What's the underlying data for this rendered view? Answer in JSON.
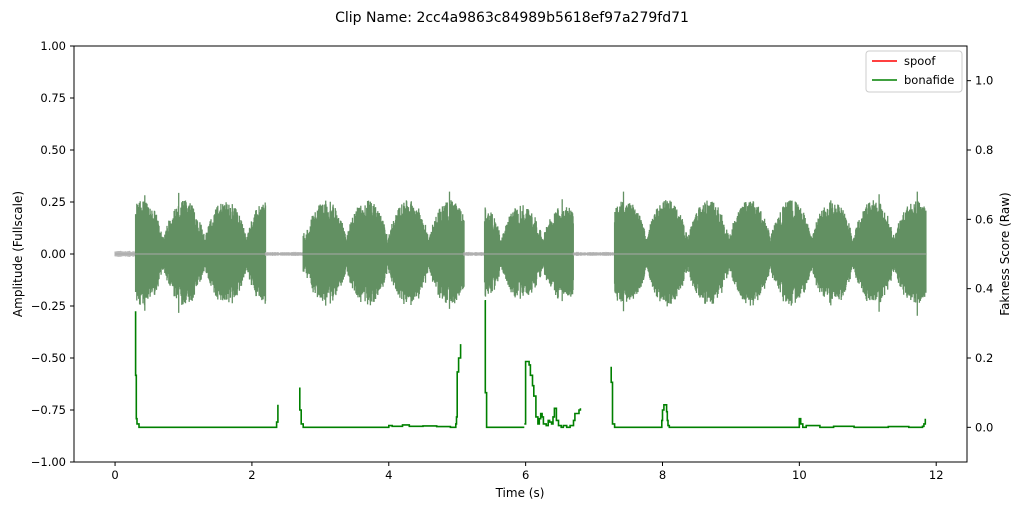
{
  "chart_data": {
    "type": "line",
    "title": "Clip Name: 2cc4a9863c84989b5618ef97a279fd71",
    "xlabel": "Time (s)",
    "ylabel_left": "Amplitude (Fullscale)",
    "ylabel_right": "Fakness Score (Raw)",
    "xlim": [
      -0.6,
      12.45
    ],
    "ylim_left": [
      -1.0,
      1.0
    ],
    "ylim_right": [
      -0.1,
      1.1
    ],
    "x_ticks": [
      0,
      2,
      4,
      6,
      8,
      10,
      12
    ],
    "x_tick_labels": [
      "0",
      "2",
      "4",
      "6",
      "8",
      "10",
      "12"
    ],
    "y_left_ticks": [
      -1.0,
      -0.75,
      -0.5,
      -0.25,
      0.0,
      0.25,
      0.5,
      0.75,
      1.0
    ],
    "y_left_tick_labels": [
      "−1.00",
      "−0.75",
      "−0.50",
      "−0.25",
      "0.00",
      "0.25",
      "0.50",
      "0.75",
      "1.00"
    ],
    "y_right_ticks": [
      0.0,
      0.2,
      0.4,
      0.6,
      0.8,
      1.0
    ],
    "y_right_tick_labels": [
      "0.0",
      "0.2",
      "0.4",
      "0.6",
      "0.8",
      "1.0"
    ],
    "grid": false,
    "legend_position": "top-right",
    "legend": [
      {
        "name": "spoof",
        "color": "#ff0000"
      },
      {
        "name": "bonafide",
        "color": "#008000"
      }
    ],
    "waveform": {
      "color_speech": "#5a8a5a",
      "color_silence": "#b0b0b0",
      "segments": [
        {
          "start": 0.0,
          "end": 0.3,
          "amp": 0.015,
          "voiced": false
        },
        {
          "start": 0.3,
          "end": 2.2,
          "amp": 0.26,
          "voiced": true
        },
        {
          "start": 2.2,
          "end": 2.75,
          "amp": 0.01,
          "voiced": false
        },
        {
          "start": 2.75,
          "end": 5.1,
          "amp": 0.26,
          "voiced": true
        },
        {
          "start": 5.1,
          "end": 5.4,
          "amp": 0.01,
          "voiced": false
        },
        {
          "start": 5.4,
          "end": 6.7,
          "amp": 0.24,
          "voiced": true
        },
        {
          "start": 6.7,
          "end": 7.3,
          "amp": 0.01,
          "voiced": false
        },
        {
          "start": 7.3,
          "end": 11.85,
          "amp": 0.26,
          "voiced": true
        }
      ]
    },
    "series": [
      {
        "name": "bonafide",
        "color": "#008000",
        "segments": [
          {
            "x": [
              0.3,
              0.3,
              0.31,
              0.32,
              0.35,
              0.5,
              1.0,
              1.5,
              2.0,
              2.35,
              2.36,
              2.38,
              2.38
            ],
            "y": [
              0.335,
              0.15,
              0.025,
              0.01,
              0.0,
              0.0,
              0.0,
              0.0,
              0.0,
              0.0,
              0.015,
              0.015,
              0.065
            ]
          },
          {
            "x": [
              2.7,
              2.7,
              2.72,
              2.75,
              3.0,
              3.5,
              3.9,
              4.0,
              4.05,
              4.2,
              4.3,
              4.5,
              4.7,
              4.9,
              4.98,
              4.99,
              5.0,
              5.02,
              5.02,
              5.05,
              5.05
            ],
            "y": [
              0.115,
              0.05,
              0.01,
              0.0,
              0.0,
              0.0,
              0.0,
              0.005,
              0.003,
              0.007,
              0.003,
              0.004,
              0.002,
              0.0,
              0.01,
              0.03,
              0.16,
              0.16,
              0.2,
              0.2,
              0.24
            ]
          },
          {
            "x": [
              5.4,
              5.41,
              5.43,
              5.5,
              5.8,
              5.98
            ],
            "y": [
              0.365,
              0.1,
              0.0,
              0.0,
              0.0,
              0.0
            ]
          },
          {
            "x": [
              5.98,
              6.0,
              6.0,
              6.02,
              6.05,
              6.07,
              6.1,
              6.12,
              6.15,
              6.18,
              6.2,
              6.22,
              6.24,
              6.26,
              6.3,
              6.33,
              6.35,
              6.38,
              6.4,
              6.42,
              6.45,
              6.48,
              6.5,
              6.52,
              6.55,
              6.6,
              6.65,
              6.7,
              6.72,
              6.75,
              6.78,
              6.8
            ],
            "y": [
              0.01,
              0.03,
              0.19,
              0.19,
              0.18,
              0.15,
              0.12,
              0.09,
              0.03,
              0.01,
              0.025,
              0.04,
              0.03,
              0.01,
              0.005,
              0.02,
              0.015,
              0.01,
              0.03,
              0.055,
              0.02,
              0.005,
              0.005,
              0.0,
              0.005,
              0.0,
              0.005,
              0.02,
              0.04,
              0.04,
              0.05,
              0.055
            ]
          },
          {
            "x": [
              7.25,
              7.25,
              7.27,
              7.3,
              7.6,
              7.95,
              7.99,
              8.0,
              8.02,
              8.04,
              8.06,
              8.07,
              8.08,
              8.1,
              8.15,
              8.5,
              9.0,
              9.5,
              9.98,
              10.0,
              10.02,
              10.05,
              10.1,
              10.3,
              10.5,
              10.8,
              11.0,
              11.3,
              11.6,
              11.8,
              11.82,
              11.84,
              11.84
            ],
            "y": [
              0.175,
              0.13,
              0.01,
              0.0,
              0.0,
              0.0,
              0.02,
              0.05,
              0.065,
              0.065,
              0.045,
              0.02,
              0.005,
              0.0,
              0.0,
              0.0,
              0.0,
              0.0,
              0.0,
              0.025,
              0.01,
              0.0,
              0.005,
              0.0,
              0.003,
              0.0,
              0.0,
              0.002,
              0.0,
              0.003,
              0.01,
              0.01,
              0.025
            ]
          }
        ]
      }
    ]
  }
}
